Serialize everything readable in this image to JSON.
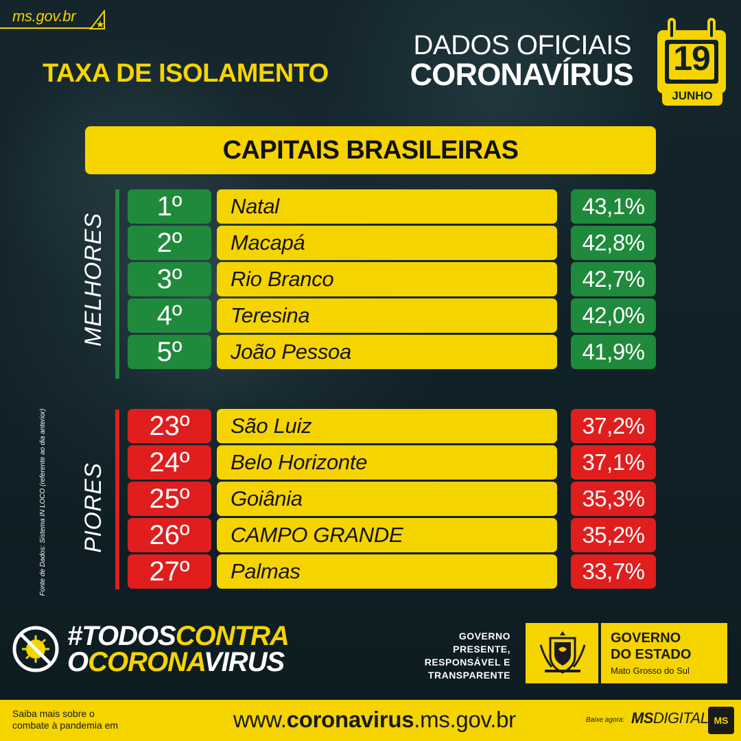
{
  "header": {
    "site": "ms.gov.br",
    "title": "TAXA DE ISOLAMENTO",
    "dados_line1": "DADOS OFICIAIS",
    "dados_line2": "CORONAVÍRUS",
    "calendar": {
      "day": "19",
      "month": "JUNHO"
    }
  },
  "section_title": "CAPITAIS BRASILEIRAS",
  "labels": {
    "best": "MELHORES",
    "worst": "PIORES"
  },
  "source_note": "Fonte de Dados: Sistema IN LOCO (referente ao dia anterior)",
  "best": [
    {
      "rank": "1º",
      "city": "Natal",
      "pct": "43,1%"
    },
    {
      "rank": "2º",
      "city": "Macapá",
      "pct": "42,8%"
    },
    {
      "rank": "3º",
      "city": "Rio Branco",
      "pct": "42,7%"
    },
    {
      "rank": "4º",
      "city": "Teresina",
      "pct": "42,0%"
    },
    {
      "rank": "5º",
      "city": "João Pessoa",
      "pct": "41,9%"
    }
  ],
  "worst": [
    {
      "rank": "23º",
      "city": "São Luiz",
      "pct": "37,2%"
    },
    {
      "rank": "24º",
      "city": "Belo Horizonte",
      "pct": "37,1%"
    },
    {
      "rank": "25º",
      "city": "Goiânia",
      "pct": "35,3%"
    },
    {
      "rank": "26º",
      "city": "CAMPO GRANDE",
      "pct": "35,2%"
    },
    {
      "rank": "27º",
      "city": "Palmas",
      "pct": "33,7%"
    }
  ],
  "campaign": {
    "line1_white": "#TODOS",
    "line1_yellow": "CONTRA",
    "line2_white": "O",
    "line2_yellow": "CORONA",
    "line2_white_end": "VIRUS"
  },
  "government": {
    "slogan_1": "GOVERNO",
    "slogan_2": "PRESENTE,",
    "slogan_3": "RESPONSÁVEL E",
    "slogan_4": "TRANSPARENTE",
    "name_1": "GOVERNO",
    "name_2": "DO ESTADO",
    "state": "Mato Grosso do Sul"
  },
  "footer": {
    "saiba_1": "Saiba mais sobre o",
    "saiba_2": "combate à pandemia em",
    "url_prefix": "www.",
    "url_bold": "coronavirus",
    "url_suffix": ".ms.gov.br",
    "baixe": "Baixe agora:",
    "app_bold": "MS",
    "app_rest": "DIGITAL",
    "app_badge": "MS"
  },
  "colors": {
    "background": "#0f2026",
    "yellow": "#f5d400",
    "green": "#1f8a3b",
    "red": "#e01e1e"
  }
}
